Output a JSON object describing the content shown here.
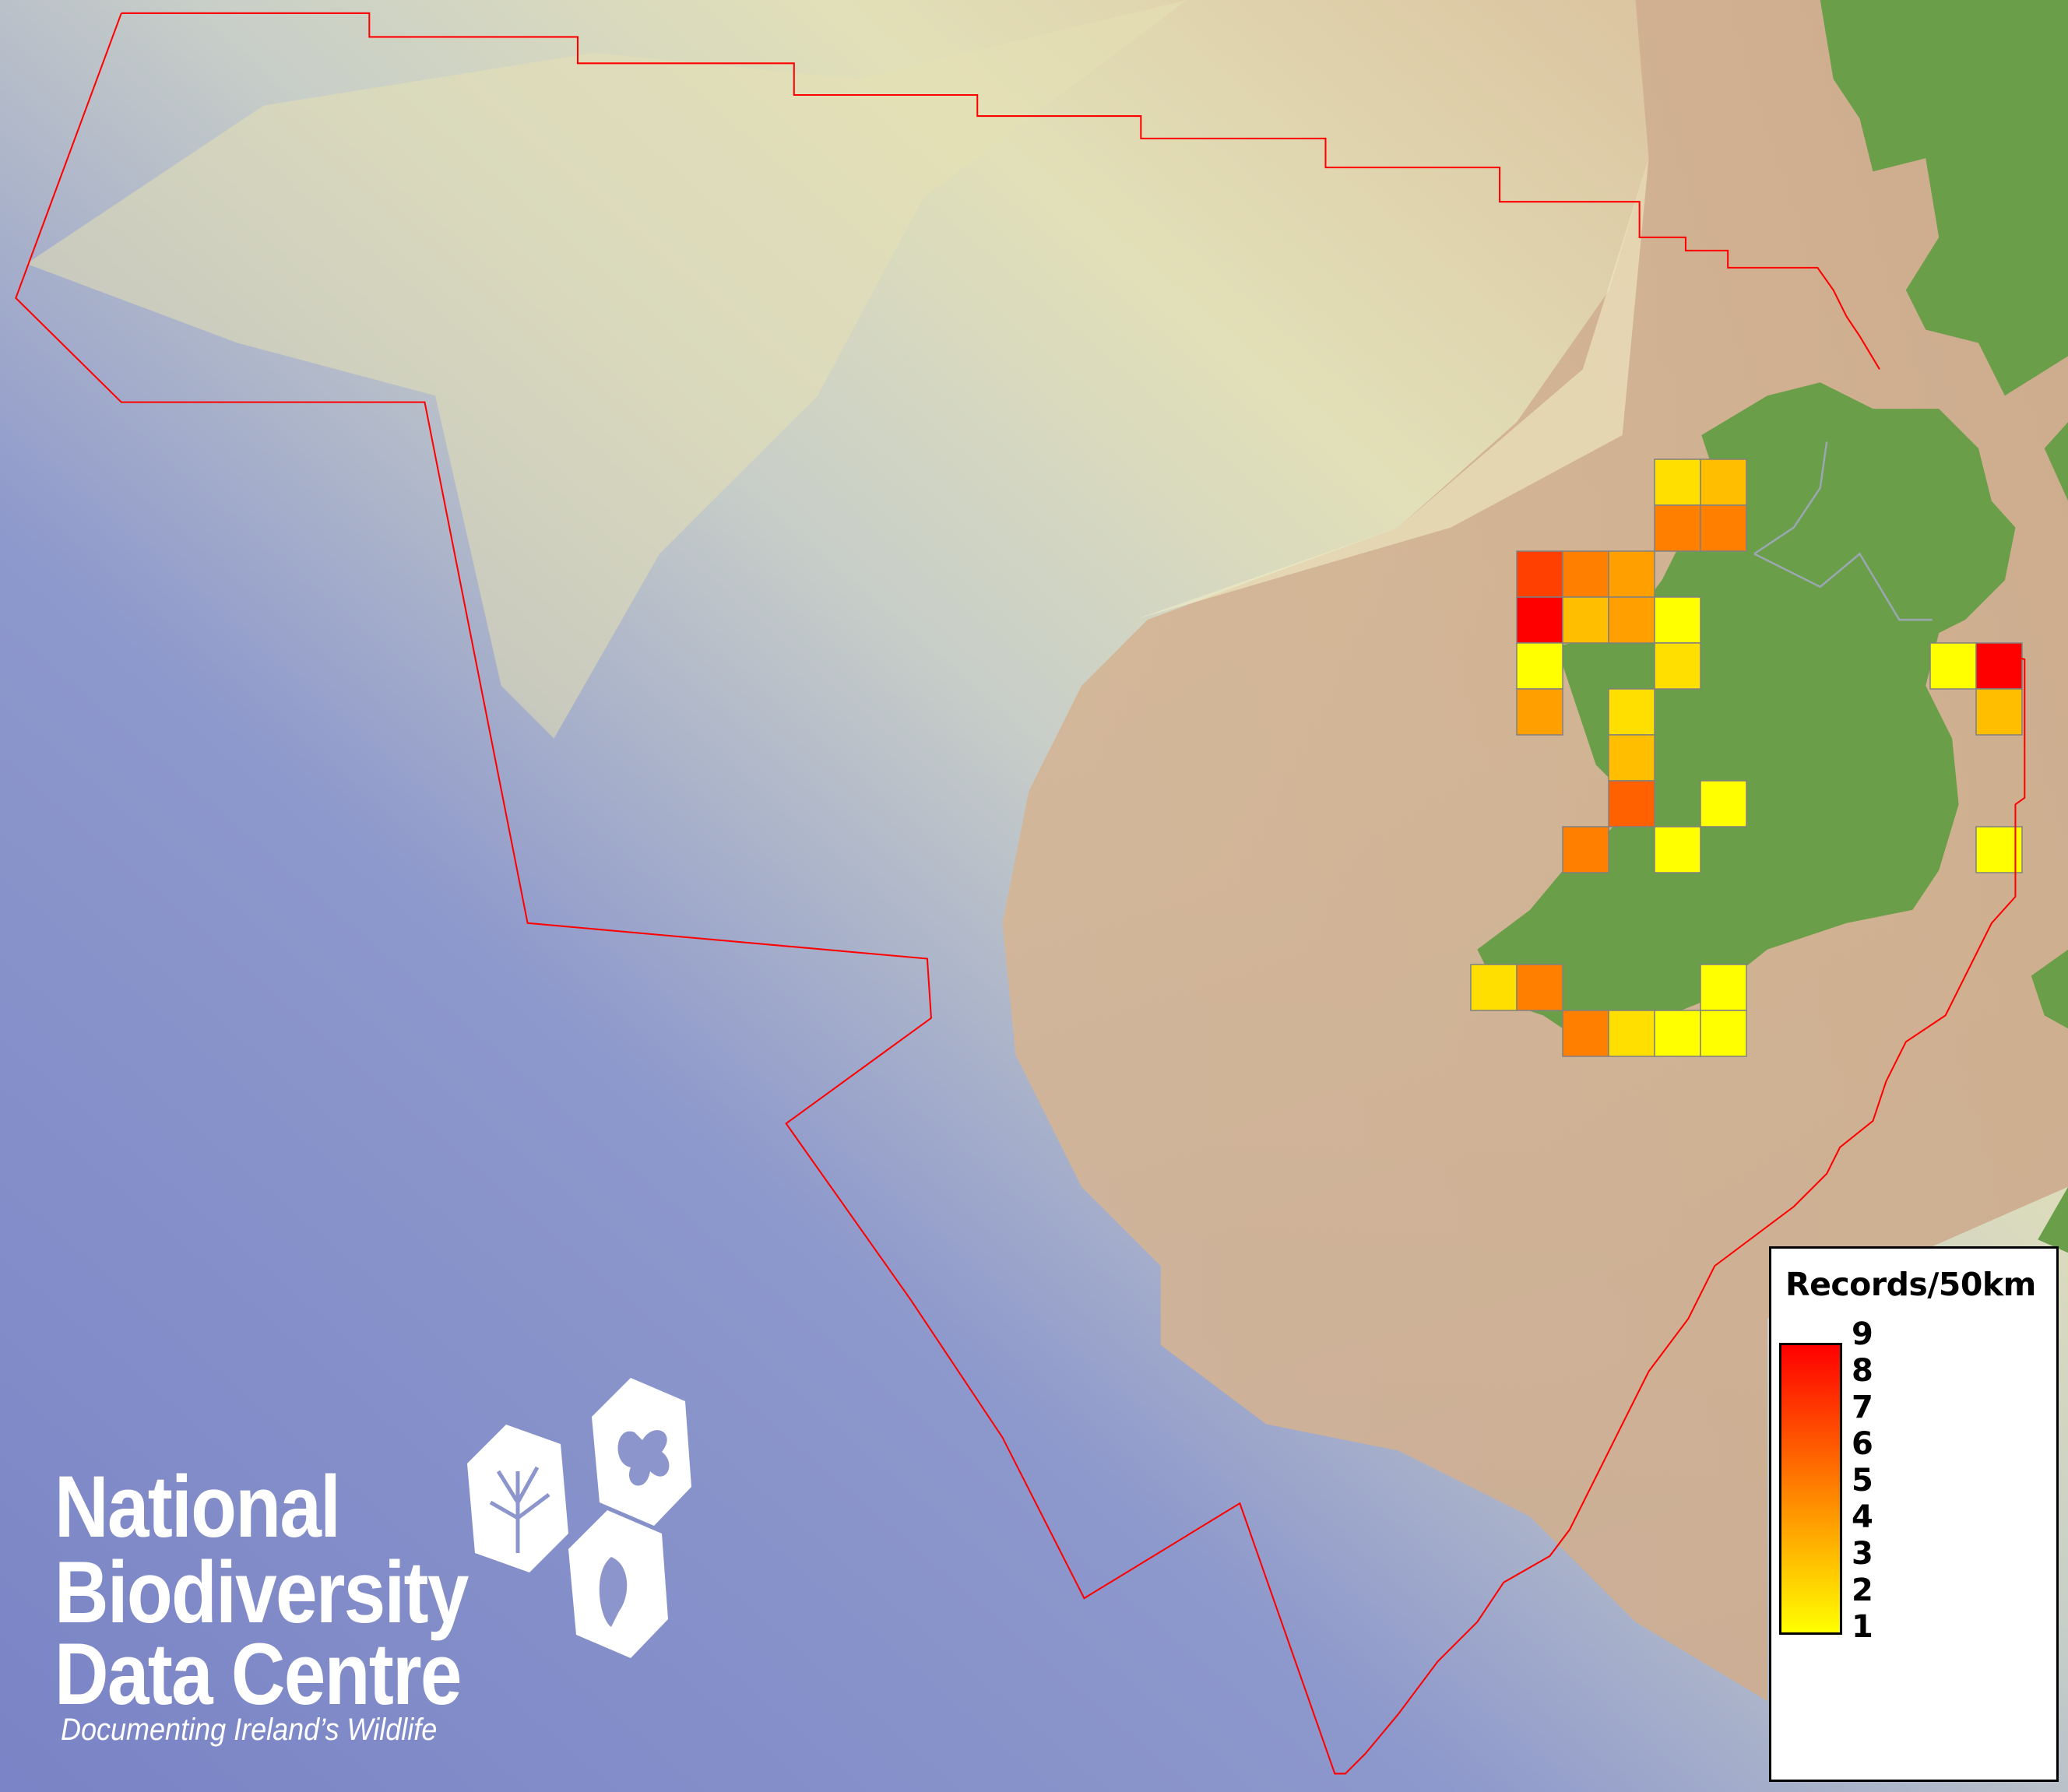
{
  "map": {
    "boundary_color": "#ff0000",
    "land_color": "#6a9e48",
    "shelf_color": "#cfaa8c",
    "deep_sea_color": "#7f88c8",
    "grid_line_color": "#808080"
  },
  "legend": {
    "title": "Records/50km",
    "min_color": "#ffff00",
    "max_color": "#ff0000",
    "ticks": [
      "9",
      "8",
      "7",
      "6",
      "5",
      "4",
      "3",
      "2",
      "1"
    ]
  },
  "chart_data": {
    "type": "heatmap",
    "title": "Records/50km",
    "value_range": [
      1,
      9
    ],
    "cells": [
      {
        "col": 4,
        "row": 0,
        "value": 2
      },
      {
        "col": 5,
        "row": 0,
        "value": 3
      },
      {
        "col": 4,
        "row": 1,
        "value": 5
      },
      {
        "col": 5,
        "row": 1,
        "value": 5
      },
      {
        "col": 1,
        "row": 2,
        "value": 7
      },
      {
        "col": 2,
        "row": 2,
        "value": 5
      },
      {
        "col": 3,
        "row": 2,
        "value": 4
      },
      {
        "col": 1,
        "row": 3,
        "value": 9
      },
      {
        "col": 2,
        "row": 3,
        "value": 3
      },
      {
        "col": 3,
        "row": 3,
        "value": 4
      },
      {
        "col": 4,
        "row": 3,
        "value": 1
      },
      {
        "col": 1,
        "row": 4,
        "value": 1
      },
      {
        "col": 4,
        "row": 4,
        "value": 2
      },
      {
        "col": 10,
        "row": 4,
        "value": 1
      },
      {
        "col": 11,
        "row": 4,
        "value": 9
      },
      {
        "col": 1,
        "row": 5,
        "value": 4
      },
      {
        "col": 3,
        "row": 5,
        "value": 2
      },
      {
        "col": 11,
        "row": 5,
        "value": 3
      },
      {
        "col": 3,
        "row": 6,
        "value": 3
      },
      {
        "col": 3,
        "row": 7,
        "value": 6
      },
      {
        "col": 5,
        "row": 7,
        "value": 1
      },
      {
        "col": 2,
        "row": 8,
        "value": 5
      },
      {
        "col": 4,
        "row": 8,
        "value": 1
      },
      {
        "col": 11,
        "row": 8,
        "value": 1
      },
      {
        "col": 0,
        "row": 11,
        "value": 2
      },
      {
        "col": 1,
        "row": 11,
        "value": 5
      },
      {
        "col": 5,
        "row": 11,
        "value": 1
      },
      {
        "col": 2,
        "row": 12,
        "value": 5
      },
      {
        "col": 3,
        "row": 12,
        "value": 2
      },
      {
        "col": 4,
        "row": 12,
        "value": 1
      },
      {
        "col": 5,
        "row": 12,
        "value": 1
      }
    ]
  },
  "logo": {
    "line1": "National",
    "line2": "Biodiversity",
    "line3": "Data Centre",
    "tagline": "Documenting Ireland’s Wildlife"
  }
}
